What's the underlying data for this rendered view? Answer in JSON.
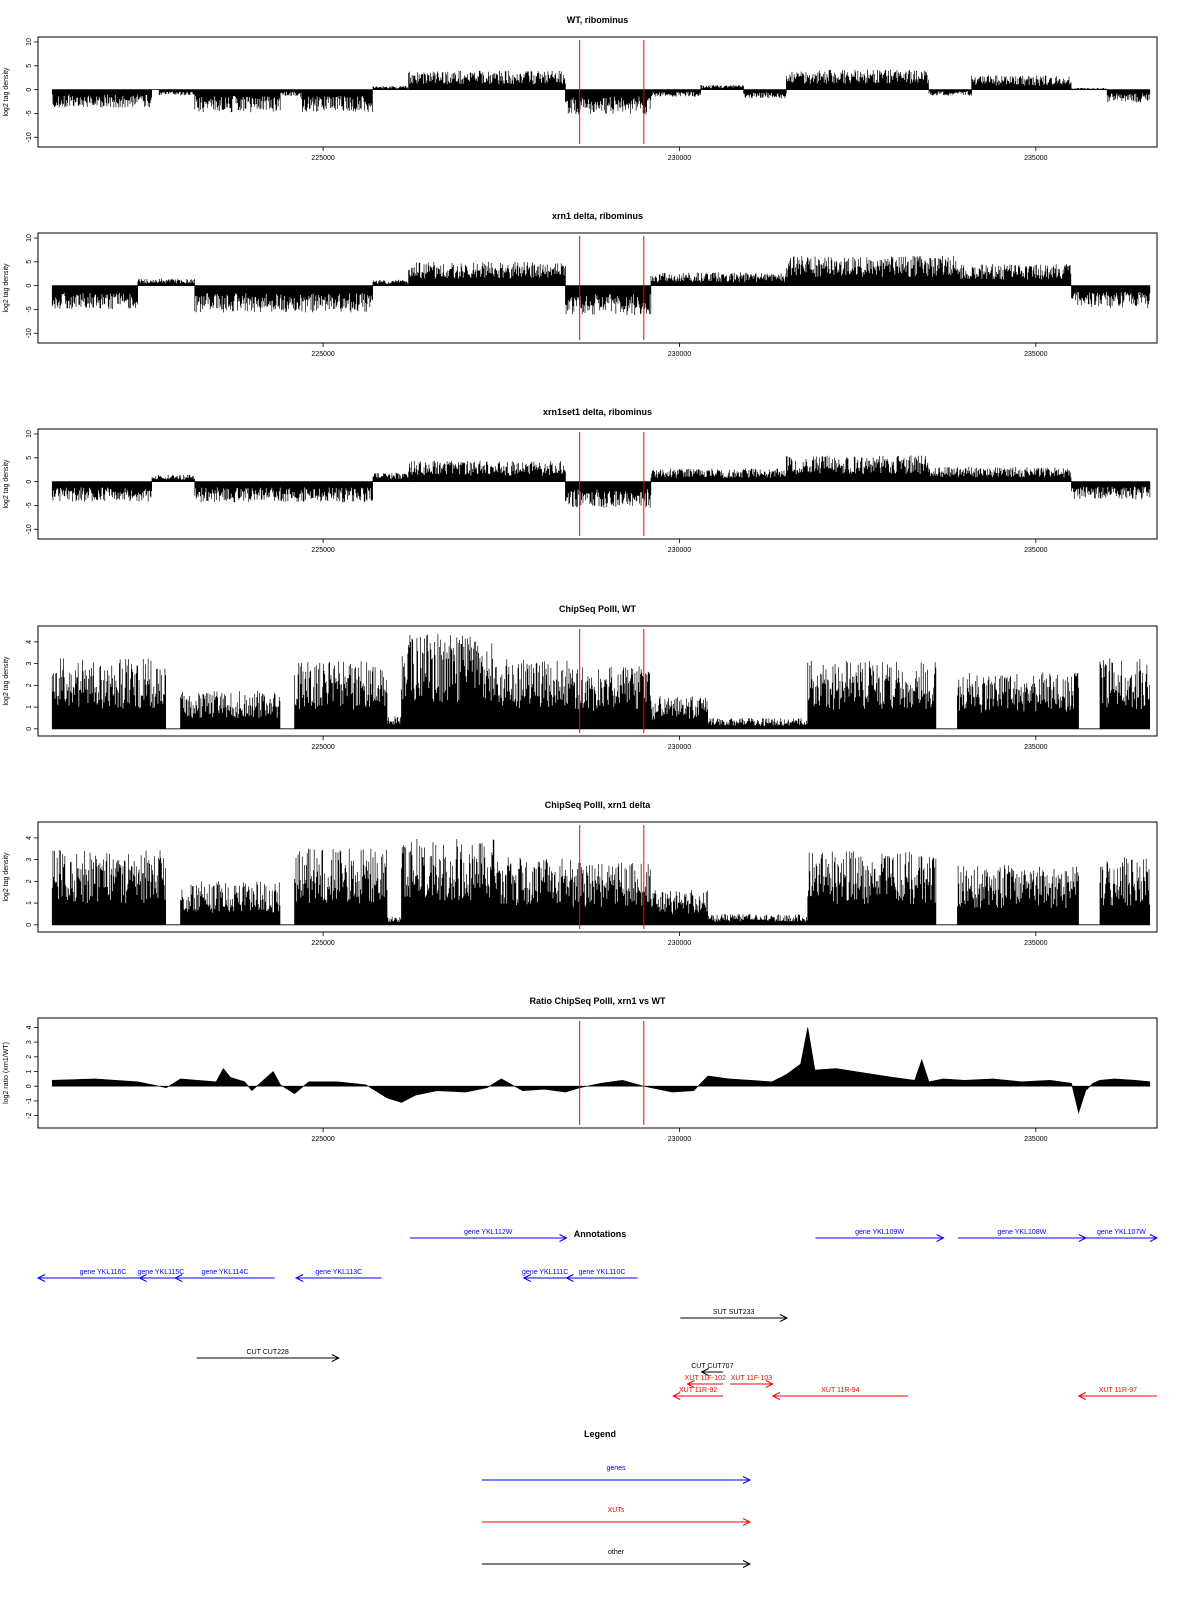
{
  "figure": {
    "background": "#ffffff"
  },
  "chart_data": [
    {
      "type": "bar",
      "title": "WT, ribominus",
      "ylabel": "log2 tag density",
      "xlim": [
        221000,
        236700
      ],
      "ylim": [
        -11,
        10
      ],
      "yticks": [
        -10,
        -5,
        0,
        5,
        10
      ],
      "xticks": [
        225000,
        230000,
        235000
      ],
      "markers": [
        228600,
        229500
      ],
      "grid": false,
      "segments": [
        {
          "from": 221200,
          "to": 222600,
          "value": -3
        },
        {
          "from": 222700,
          "to": 223200,
          "value": -1
        },
        {
          "from": 223200,
          "to": 224400,
          "value": -3.8
        },
        {
          "from": 224400,
          "to": 224700,
          "value": -1.2
        },
        {
          "from": 224700,
          "to": 225700,
          "value": -3.8
        },
        {
          "from": 225700,
          "to": 226200,
          "value": 0.6
        },
        {
          "from": 226200,
          "to": 228400,
          "value": 3.2
        },
        {
          "from": 228400,
          "to": 229600,
          "value": -4.2
        },
        {
          "from": 229600,
          "to": 230300,
          "value": -1.2
        },
        {
          "from": 230300,
          "to": 230900,
          "value": 0.8
        },
        {
          "from": 230900,
          "to": 231500,
          "value": -1.5
        },
        {
          "from": 231500,
          "to": 233500,
          "value": 3.4
        },
        {
          "from": 233500,
          "to": 234100,
          "value": -1
        },
        {
          "from": 234100,
          "to": 235500,
          "value": 2.4
        },
        {
          "from": 235500,
          "to": 236000,
          "value": 0.3
        },
        {
          "from": 236000,
          "to": 236600,
          "value": -2.2
        }
      ]
    },
    {
      "type": "bar",
      "title": "xrn1 delta, ribominus",
      "ylabel": "log2 tag density",
      "xlim": [
        221000,
        236700
      ],
      "ylim": [
        -11,
        10
      ],
      "yticks": [
        -10,
        -5,
        0,
        5,
        10
      ],
      "xticks": [
        225000,
        230000,
        235000
      ],
      "markers": [
        228600,
        229500
      ],
      "grid": false,
      "segments": [
        {
          "from": 221200,
          "to": 222400,
          "value": -4
        },
        {
          "from": 222400,
          "to": 223200,
          "value": 1.2
        },
        {
          "from": 223200,
          "to": 225700,
          "value": -4.5
        },
        {
          "from": 225700,
          "to": 226200,
          "value": 1
        },
        {
          "from": 226200,
          "to": 228400,
          "value": 4
        },
        {
          "from": 228400,
          "to": 229600,
          "value": -5
        },
        {
          "from": 229600,
          "to": 231500,
          "value": 2.2
        },
        {
          "from": 231500,
          "to": 233900,
          "value": 5
        },
        {
          "from": 233900,
          "to": 235500,
          "value": 3.6
        },
        {
          "from": 235500,
          "to": 236600,
          "value": -3.8
        }
      ]
    },
    {
      "type": "bar",
      "title": "xrn1set1 delta, ribominus",
      "ylabel": "log2 tag density",
      "xlim": [
        221000,
        236700
      ],
      "ylim": [
        -11,
        10
      ],
      "yticks": [
        -10,
        -5,
        0,
        5,
        10
      ],
      "xticks": [
        225000,
        230000,
        235000
      ],
      "markers": [
        228600,
        229500
      ],
      "grid": false,
      "segments": [
        {
          "from": 221200,
          "to": 222600,
          "value": -3.4
        },
        {
          "from": 222600,
          "to": 223200,
          "value": 1.2
        },
        {
          "from": 223200,
          "to": 225700,
          "value": -3.5
        },
        {
          "from": 225700,
          "to": 226200,
          "value": 1.5
        },
        {
          "from": 226200,
          "to": 228400,
          "value": 3.5
        },
        {
          "from": 228400,
          "to": 229600,
          "value": -4.4
        },
        {
          "from": 229600,
          "to": 231500,
          "value": 2.2
        },
        {
          "from": 231500,
          "to": 233500,
          "value": 4.4
        },
        {
          "from": 233500,
          "to": 235500,
          "value": 2.5
        },
        {
          "from": 235500,
          "to": 236600,
          "value": -3
        }
      ]
    },
    {
      "type": "bar",
      "title": "ChipSeq PolII, WT",
      "ylabel": "log2 tag density",
      "xlim": [
        221000,
        236700
      ],
      "ylim": [
        -0.1,
        4.5
      ],
      "yticks": [
        0,
        1,
        2,
        3,
        4
      ],
      "xticks": [
        225000,
        230000,
        235000
      ],
      "markers": [
        228600,
        229500
      ],
      "grid": false,
      "segments": [
        {
          "from": 221200,
          "to": 222800,
          "value": 2.6
        },
        {
          "from": 222800,
          "to": 223000,
          "value": 0
        },
        {
          "from": 223000,
          "to": 224400,
          "value": 1.4
        },
        {
          "from": 224400,
          "to": 224600,
          "value": 0
        },
        {
          "from": 224600,
          "to": 225900,
          "value": 2.5
        },
        {
          "from": 225900,
          "to": 226100,
          "value": 0.5
        },
        {
          "from": 226100,
          "to": 227400,
          "value": 3.5
        },
        {
          "from": 227400,
          "to": 228500,
          "value": 2.6
        },
        {
          "from": 228500,
          "to": 229600,
          "value": 2.3
        },
        {
          "from": 229600,
          "to": 230400,
          "value": 1.2
        },
        {
          "from": 230400,
          "to": 231800,
          "value": 0.4
        },
        {
          "from": 231800,
          "to": 233600,
          "value": 2.5
        },
        {
          "from": 233600,
          "to": 233900,
          "value": 0
        },
        {
          "from": 233900,
          "to": 235600,
          "value": 2.1
        },
        {
          "from": 235600,
          "to": 235900,
          "value": 0
        },
        {
          "from": 235900,
          "to": 236600,
          "value": 2.6
        }
      ]
    },
    {
      "type": "bar",
      "title": "ChipSeq PolII, xrn1 delta",
      "ylabel": "log2 tag density",
      "xlim": [
        221000,
        236700
      ],
      "ylim": [
        -0.1,
        4.5
      ],
      "yticks": [
        0,
        1,
        2,
        3,
        4
      ],
      "xticks": [
        225000,
        230000,
        235000
      ],
      "markers": [
        228600,
        229500
      ],
      "grid": false,
      "segments": [
        {
          "from": 221200,
          "to": 222800,
          "value": 2.8
        },
        {
          "from": 222800,
          "to": 223000,
          "value": 0
        },
        {
          "from": 223000,
          "to": 224400,
          "value": 1.6
        },
        {
          "from": 224400,
          "to": 224600,
          "value": 0
        },
        {
          "from": 224600,
          "to": 225900,
          "value": 2.8
        },
        {
          "from": 225900,
          "to": 226100,
          "value": 0.3
        },
        {
          "from": 226100,
          "to": 227400,
          "value": 3.2
        },
        {
          "from": 227400,
          "to": 228500,
          "value": 2.5
        },
        {
          "from": 228500,
          "to": 229600,
          "value": 2.3
        },
        {
          "from": 229600,
          "to": 230400,
          "value": 1.3
        },
        {
          "from": 230400,
          "to": 231800,
          "value": 0.4
        },
        {
          "from": 231800,
          "to": 233600,
          "value": 2.7
        },
        {
          "from": 233600,
          "to": 233900,
          "value": 0
        },
        {
          "from": 233900,
          "to": 235600,
          "value": 2.2
        },
        {
          "from": 235600,
          "to": 235900,
          "value": 0
        },
        {
          "from": 235900,
          "to": 236600,
          "value": 2.5
        }
      ]
    },
    {
      "type": "area",
      "title": "Ratio ChipSeq PolII, xrn1 vs WT",
      "ylabel": "log2 ratio (xrn1/WT)",
      "xlim": [
        221000,
        236700
      ],
      "ylim": [
        -2.5,
        4.3
      ],
      "yticks": [
        -2,
        -1,
        0,
        1,
        2,
        3,
        4
      ],
      "xticks": [
        225000,
        230000,
        235000
      ],
      "markers": [
        228600,
        229500
      ],
      "grid": false,
      "x": [
        221200,
        221800,
        222400,
        222800,
        223000,
        223500,
        223600,
        223700,
        223900,
        224000,
        224300,
        224400,
        224600,
        224800,
        225200,
        225600,
        225900,
        226100,
        226300,
        226600,
        227000,
        227300,
        227500,
        227800,
        228100,
        228400,
        228600,
        228900,
        229200,
        229500,
        229900,
        230200,
        230400,
        230700,
        231000,
        231300,
        231500,
        231700,
        231800,
        231900,
        232200,
        232600,
        233000,
        233300,
        233400,
        233500,
        233700,
        234000,
        234400,
        234800,
        235200,
        235500,
        235600,
        235700,
        235800,
        235900,
        236100,
        236400,
        236600
      ],
      "y": [
        0.4,
        0.5,
        0.3,
        -0.1,
        0.5,
        0.3,
        1.2,
        0.6,
        0.3,
        -0.3,
        1.0,
        0.1,
        -0.5,
        0.3,
        0.3,
        0.1,
        -0.8,
        -1.1,
        -0.6,
        -0.3,
        -0.4,
        -0.1,
        0.5,
        -0.3,
        -0.2,
        -0.4,
        -0.1,
        0.2,
        0.4,
        0.0,
        -0.4,
        -0.3,
        0.7,
        0.5,
        0.4,
        0.3,
        0.8,
        1.5,
        4.0,
        1.1,
        1.2,
        0.9,
        0.6,
        0.4,
        1.8,
        0.3,
        0.5,
        0.4,
        0.5,
        0.3,
        0.4,
        0.2,
        -1.8,
        -0.3,
        0.2,
        0.4,
        0.5,
        0.4,
        0.3
      ]
    }
  ],
  "annotations": {
    "title": "Annotations",
    "xlim": [
      221000,
      236700
    ],
    "colors": {
      "genes": "#0000ff",
      "XUTs": "#ff0000",
      "other": "#000000"
    },
    "features": [
      {
        "label": "gene YKL116C",
        "kind": "genes",
        "strand": "-",
        "start": 219600,
        "end": 222800,
        "row": 0
      },
      {
        "label": "gene YKL115C",
        "kind": "genes",
        "strand": "-",
        "start": 222400,
        "end": 223000,
        "row": 0
      },
      {
        "label": "gene YKL114C",
        "kind": "genes",
        "strand": "-",
        "start": 222900,
        "end": 224300,
        "row": 0
      },
      {
        "label": "gene YKL113C",
        "kind": "genes",
        "strand": "-",
        "start": 224600,
        "end": 225800,
        "row": 0
      },
      {
        "label": "gene YKL112W",
        "kind": "genes",
        "strand": "+",
        "start": 226200,
        "end": 228400,
        "row": -1
      },
      {
        "label": "gene YKL111C",
        "kind": "genes",
        "strand": "-",
        "start": 227800,
        "end": 228400,
        "row": 0
      },
      {
        "label": "gene YKL110C",
        "kind": "genes",
        "strand": "-",
        "start": 228400,
        "end": 229400,
        "row": 0
      },
      {
        "label": "gene YKL109W",
        "kind": "genes",
        "strand": "+",
        "start": 231900,
        "end": 233700,
        "row": -1
      },
      {
        "label": "gene YKL108W",
        "kind": "genes",
        "strand": "+",
        "start": 233900,
        "end": 235700,
        "row": -1
      },
      {
        "label": "gene YKL107W",
        "kind": "genes",
        "strand": "+",
        "start": 235700,
        "end": 236700,
        "row": -1
      },
      {
        "label": "SUT SUT233",
        "kind": "other",
        "strand": "+",
        "start": 230000,
        "end": 231500,
        "row": 1
      },
      {
        "label": "CUT CUT228",
        "kind": "other",
        "strand": "+",
        "start": 223200,
        "end": 225200,
        "row": 2
      },
      {
        "label": "CUT CUT707",
        "kind": "other",
        "strand": "-",
        "start": 230300,
        "end": 230600,
        "row": 2.35
      },
      {
        "label": "XUT 11F-102",
        "kind": "XUTs",
        "strand": "-",
        "start": 230100,
        "end": 230600,
        "row": 2.65
      },
      {
        "label": "XUT 11F-103",
        "kind": "XUTs",
        "strand": "+",
        "start": 230700,
        "end": 231300,
        "row": 2.65
      },
      {
        "label": "XUT 11R-92",
        "kind": "XUTs",
        "strand": "-",
        "start": 229900,
        "end": 230600,
        "row": 2.95
      },
      {
        "label": "XUT 11R-94",
        "kind": "XUTs",
        "strand": "-",
        "start": 231300,
        "end": 233200,
        "row": 2.95
      },
      {
        "label": "XUT 11R-97",
        "kind": "XUTs",
        "strand": "-",
        "start": 235600,
        "end": 236700,
        "row": 2.95
      }
    ]
  },
  "legend": {
    "title": "Legend",
    "items": [
      {
        "label": "genes",
        "color": "#0000ff"
      },
      {
        "label": "XUTs",
        "color": "#ff0000"
      },
      {
        "label": "other",
        "color": "#000000"
      }
    ]
  }
}
